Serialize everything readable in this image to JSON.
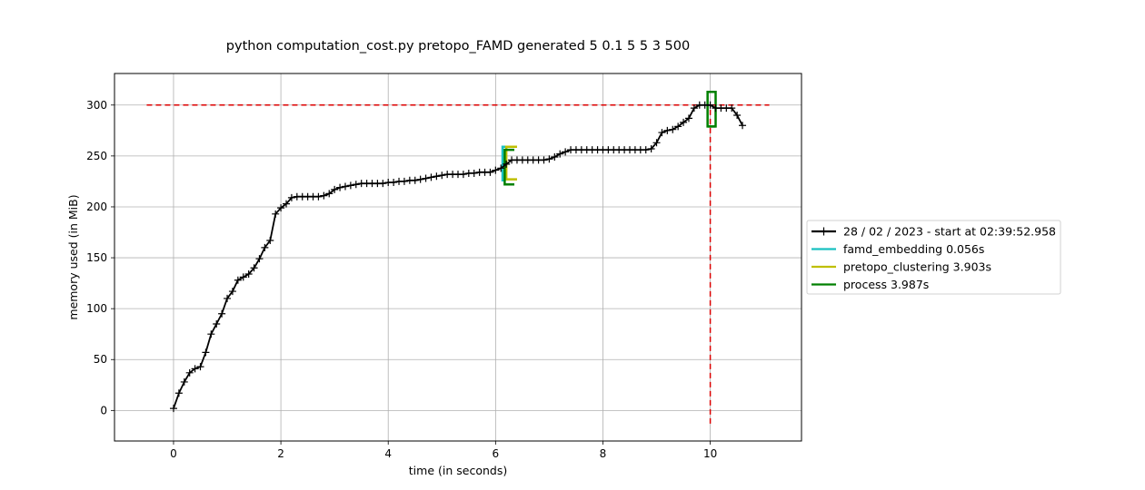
{
  "chart_data": {
    "type": "line",
    "title": "python computation_cost.py pretopo_FAMD generated 5 0.1 5 5 3 500",
    "xlabel": "time (in seconds)",
    "ylabel": "memory used (in MiB)",
    "xlim": [
      -1.1,
      11.7
    ],
    "ylim": [
      -30,
      331
    ],
    "xticks": [
      0,
      2,
      4,
      6,
      8,
      10
    ],
    "yticks": [
      0,
      50,
      100,
      150,
      200,
      250,
      300
    ],
    "grid": true,
    "legend_position": "center-right-outside",
    "memory_series": {
      "name": "28 / 02 / 2023 - start at 02:39:52.958",
      "color": "#000000",
      "x": [
        0.0,
        0.1,
        0.2,
        0.3,
        0.4,
        0.5,
        0.6,
        0.7,
        0.8,
        0.9,
        1.0,
        1.1,
        1.2,
        1.3,
        1.4,
        1.5,
        1.6,
        1.7,
        1.8,
        1.9,
        2.0,
        2.1,
        2.2,
        2.3,
        2.4,
        2.5,
        2.6,
        2.7,
        2.8,
        2.9,
        3.0,
        3.1,
        3.2,
        3.3,
        3.4,
        3.5,
        3.6,
        3.7,
        3.8,
        3.9,
        4.0,
        4.1,
        4.2,
        4.3,
        4.4,
        4.5,
        4.6,
        4.7,
        4.8,
        4.9,
        5.0,
        5.1,
        5.2,
        5.3,
        5.4,
        5.5,
        5.6,
        5.7,
        5.8,
        5.9,
        6.0,
        6.1,
        6.2,
        6.3,
        6.4,
        6.5,
        6.6,
        6.7,
        6.8,
        6.9,
        7.0,
        7.1,
        7.2,
        7.3,
        7.4,
        7.5,
        7.6,
        7.7,
        7.8,
        7.9,
        8.0,
        8.1,
        8.2,
        8.3,
        8.4,
        8.5,
        8.6,
        8.7,
        8.8,
        8.9,
        9.0,
        9.1,
        9.2,
        9.3,
        9.4,
        9.5,
        9.6,
        9.7,
        9.8,
        9.9,
        10.0,
        10.1,
        10.2,
        10.3,
        10.4,
        10.5,
        10.6
      ],
      "y": [
        2,
        17,
        28,
        37,
        41,
        43,
        57,
        75,
        85,
        95,
        110,
        117,
        128,
        131,
        134,
        140,
        149,
        160,
        167,
        193,
        199,
        203,
        209,
        210,
        210,
        210,
        210,
        210,
        211,
        213,
        217,
        219,
        220,
        221,
        222,
        223,
        223,
        223,
        223,
        223,
        224,
        224,
        225,
        225,
        226,
        226,
        227,
        228,
        229,
        230,
        231,
        232,
        232,
        232,
        232,
        233,
        233,
        234,
        234,
        234,
        236,
        238,
        242,
        246,
        246,
        246,
        246,
        246,
        246,
        246,
        247,
        249,
        252,
        254,
        256,
        256,
        256,
        256,
        256,
        256,
        256,
        256,
        256,
        256,
        256,
        256,
        256,
        256,
        256,
        257,
        263,
        273,
        275,
        276,
        279,
        283,
        287,
        297,
        300,
        300,
        300,
        297,
        297,
        297,
        297,
        290,
        280
      ]
    },
    "max_hline": {
      "y": 300,
      "x_from": -0.5,
      "x_to": 11.1,
      "color": "#dd0000"
    },
    "max_vline": {
      "x": 10.0,
      "y_from": -13,
      "y_to": 300,
      "color": "#dd0000"
    },
    "functions": [
      {
        "name": "famd_embedding 0.056s",
        "color": "#19c0c0",
        "start": 6.13,
        "end": 6.19,
        "mem_low": 226,
        "mem_high": 259
      },
      {
        "name": "pretopo_clustering 3.903s",
        "color": "#bfbf00",
        "start": 6.2,
        "end": 6.4,
        "mem_low": 227,
        "mem_high": 259
      },
      {
        "name": "process 3.987s",
        "color": "#008000",
        "start": 6.17,
        "end": 6.35,
        "mem_low": 222,
        "mem_high": 256
      },
      {
        "name": "process",
        "color": "#008000",
        "start": 9.95,
        "end": 10.1,
        "mem_low": 279,
        "mem_high": 313,
        "legend": false
      }
    ]
  }
}
